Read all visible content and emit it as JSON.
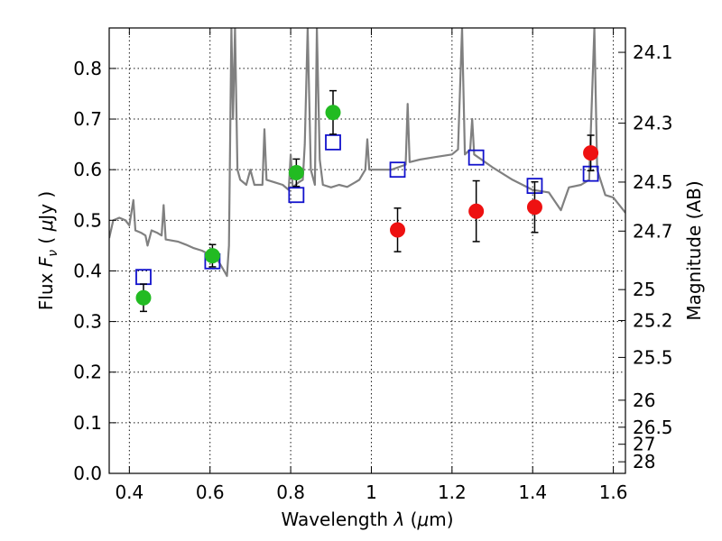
{
  "chart_data": {
    "type": "scatter",
    "title": "",
    "xlabel": "Wavelength λ (μm)",
    "ylabel": "Flux F_ν (μJy)",
    "y2label": "Magnitude (AB)",
    "xlim": [
      0.35,
      1.63
    ],
    "ylim": [
      0.0,
      0.88
    ],
    "grid": true,
    "x_ticks": [
      0.4,
      0.6,
      0.8,
      1.0,
      1.2,
      1.4,
      1.6
    ],
    "x_tick_labels": [
      "0.4",
      "0.6",
      "0.8",
      "1",
      "1.2",
      "1.4",
      "1.6"
    ],
    "y_ticks": [
      0.0,
      0.1,
      0.2,
      0.3,
      0.4,
      0.5,
      0.6,
      0.7,
      0.8
    ],
    "y_tick_labels": [
      "0.0",
      "0.1",
      "0.2",
      "0.3",
      "0.4",
      "0.5",
      "0.6",
      "0.7",
      "0.8"
    ],
    "y2_ticks": [
      24.1,
      24.3,
      24.5,
      24.7,
      25,
      25.2,
      25.5,
      26,
      26.5,
      27,
      28
    ],
    "y2_tick_labels": [
      "24.1",
      "24.3",
      "24.5",
      "24.7",
      "25",
      "25.2",
      "25.5",
      "26",
      "26.5",
      "27",
      "28"
    ],
    "series": [
      {
        "marker": "circle",
        "color": "#22bb22",
        "points": [
          {
            "x": 0.435,
            "y": 0.347,
            "err": 0.027
          },
          {
            "x": 0.606,
            "y": 0.43,
            "err": 0.022
          },
          {
            "x": 0.814,
            "y": 0.594,
            "err": 0.027
          },
          {
            "x": 0.905,
            "y": 0.713,
            "err": 0.043
          }
        ]
      },
      {
        "marker": "circle",
        "color": "#ee1111",
        "points": [
          {
            "x": 1.065,
            "y": 0.481,
            "err": 0.043
          },
          {
            "x": 1.26,
            "y": 0.518,
            "err": 0.06
          },
          {
            "x": 1.405,
            "y": 0.526,
            "err": 0.05
          },
          {
            "x": 1.544,
            "y": 0.633,
            "err": 0.035
          }
        ]
      },
      {
        "marker": "square-open",
        "color": "#1111cc",
        "points": [
          {
            "x": 0.435,
            "y": 0.388
          },
          {
            "x": 0.606,
            "y": 0.419
          },
          {
            "x": 0.814,
            "y": 0.55
          },
          {
            "x": 0.905,
            "y": 0.654
          },
          {
            "x": 1.065,
            "y": 0.6
          },
          {
            "x": 1.26,
            "y": 0.624
          },
          {
            "x": 1.405,
            "y": 0.568
          },
          {
            "x": 1.544,
            "y": 0.592
          }
        ]
      },
      {
        "marker": "line",
        "color": "#808080",
        "points": [
          {
            "x": 0.35,
            "y": 0.465
          },
          {
            "x": 0.36,
            "y": 0.5
          },
          {
            "x": 0.375,
            "y": 0.505
          },
          {
            "x": 0.39,
            "y": 0.5
          },
          {
            "x": 0.4,
            "y": 0.49
          },
          {
            "x": 0.41,
            "y": 0.54
          },
          {
            "x": 0.415,
            "y": 0.48
          },
          {
            "x": 0.43,
            "y": 0.475
          },
          {
            "x": 0.44,
            "y": 0.47
          },
          {
            "x": 0.445,
            "y": 0.45
          },
          {
            "x": 0.455,
            "y": 0.48
          },
          {
            "x": 0.47,
            "y": 0.475
          },
          {
            "x": 0.48,
            "y": 0.47
          },
          {
            "x": 0.485,
            "y": 0.53
          },
          {
            "x": 0.49,
            "y": 0.462
          },
          {
            "x": 0.52,
            "y": 0.458
          },
          {
            "x": 0.54,
            "y": 0.452
          },
          {
            "x": 0.56,
            "y": 0.445
          },
          {
            "x": 0.58,
            "y": 0.44
          },
          {
            "x": 0.6,
            "y": 0.432
          },
          {
            "x": 0.62,
            "y": 0.42
          },
          {
            "x": 0.635,
            "y": 0.4
          },
          {
            "x": 0.642,
            "y": 0.39
          },
          {
            "x": 0.647,
            "y": 0.45
          },
          {
            "x": 0.653,
            "y": 0.88
          },
          {
            "x": 0.657,
            "y": 0.7
          },
          {
            "x": 0.662,
            "y": 0.88
          },
          {
            "x": 0.668,
            "y": 0.6
          },
          {
            "x": 0.675,
            "y": 0.58
          },
          {
            "x": 0.69,
            "y": 0.57
          },
          {
            "x": 0.7,
            "y": 0.6
          },
          {
            "x": 0.71,
            "y": 0.57
          },
          {
            "x": 0.73,
            "y": 0.57
          },
          {
            "x": 0.735,
            "y": 0.68
          },
          {
            "x": 0.74,
            "y": 0.58
          },
          {
            "x": 0.76,
            "y": 0.575
          },
          {
            "x": 0.78,
            "y": 0.57
          },
          {
            "x": 0.795,
            "y": 0.56
          },
          {
            "x": 0.8,
            "y": 0.63
          },
          {
            "x": 0.805,
            "y": 0.565
          },
          {
            "x": 0.82,
            "y": 0.575
          },
          {
            "x": 0.83,
            "y": 0.58
          },
          {
            "x": 0.835,
            "y": 0.65
          },
          {
            "x": 0.842,
            "y": 0.88
          },
          {
            "x": 0.85,
            "y": 0.6
          },
          {
            "x": 0.86,
            "y": 0.57
          },
          {
            "x": 0.865,
            "y": 0.88
          },
          {
            "x": 0.872,
            "y": 0.62
          },
          {
            "x": 0.88,
            "y": 0.57
          },
          {
            "x": 0.9,
            "y": 0.565
          },
          {
            "x": 0.92,
            "y": 0.57
          },
          {
            "x": 0.94,
            "y": 0.566
          },
          {
            "x": 0.96,
            "y": 0.575
          },
          {
            "x": 0.97,
            "y": 0.58
          },
          {
            "x": 0.985,
            "y": 0.6
          },
          {
            "x": 0.99,
            "y": 0.66
          },
          {
            "x": 0.995,
            "y": 0.6
          },
          {
            "x": 1.02,
            "y": 0.6
          },
          {
            "x": 1.05,
            "y": 0.6
          },
          {
            "x": 1.085,
            "y": 0.61
          },
          {
            "x": 1.09,
            "y": 0.73
          },
          {
            "x": 1.095,
            "y": 0.615
          },
          {
            "x": 1.12,
            "y": 0.62
          },
          {
            "x": 1.16,
            "y": 0.625
          },
          {
            "x": 1.2,
            "y": 0.63
          },
          {
            "x": 1.215,
            "y": 0.64
          },
          {
            "x": 1.225,
            "y": 0.88
          },
          {
            "x": 1.232,
            "y": 0.63
          },
          {
            "x": 1.245,
            "y": 0.64
          },
          {
            "x": 1.25,
            "y": 0.7
          },
          {
            "x": 1.255,
            "y": 0.63
          },
          {
            "x": 1.3,
            "y": 0.605
          },
          {
            "x": 1.35,
            "y": 0.58
          },
          {
            "x": 1.4,
            "y": 0.56
          },
          {
            "x": 1.44,
            "y": 0.555
          },
          {
            "x": 1.47,
            "y": 0.52
          },
          {
            "x": 1.49,
            "y": 0.565
          },
          {
            "x": 1.52,
            "y": 0.57
          },
          {
            "x": 1.54,
            "y": 0.58
          },
          {
            "x": 1.553,
            "y": 0.88
          },
          {
            "x": 1.56,
            "y": 0.6
          },
          {
            "x": 1.58,
            "y": 0.55
          },
          {
            "x": 1.6,
            "y": 0.545
          },
          {
            "x": 1.615,
            "y": 0.53
          },
          {
            "x": 1.63,
            "y": 0.515
          }
        ]
      }
    ]
  }
}
